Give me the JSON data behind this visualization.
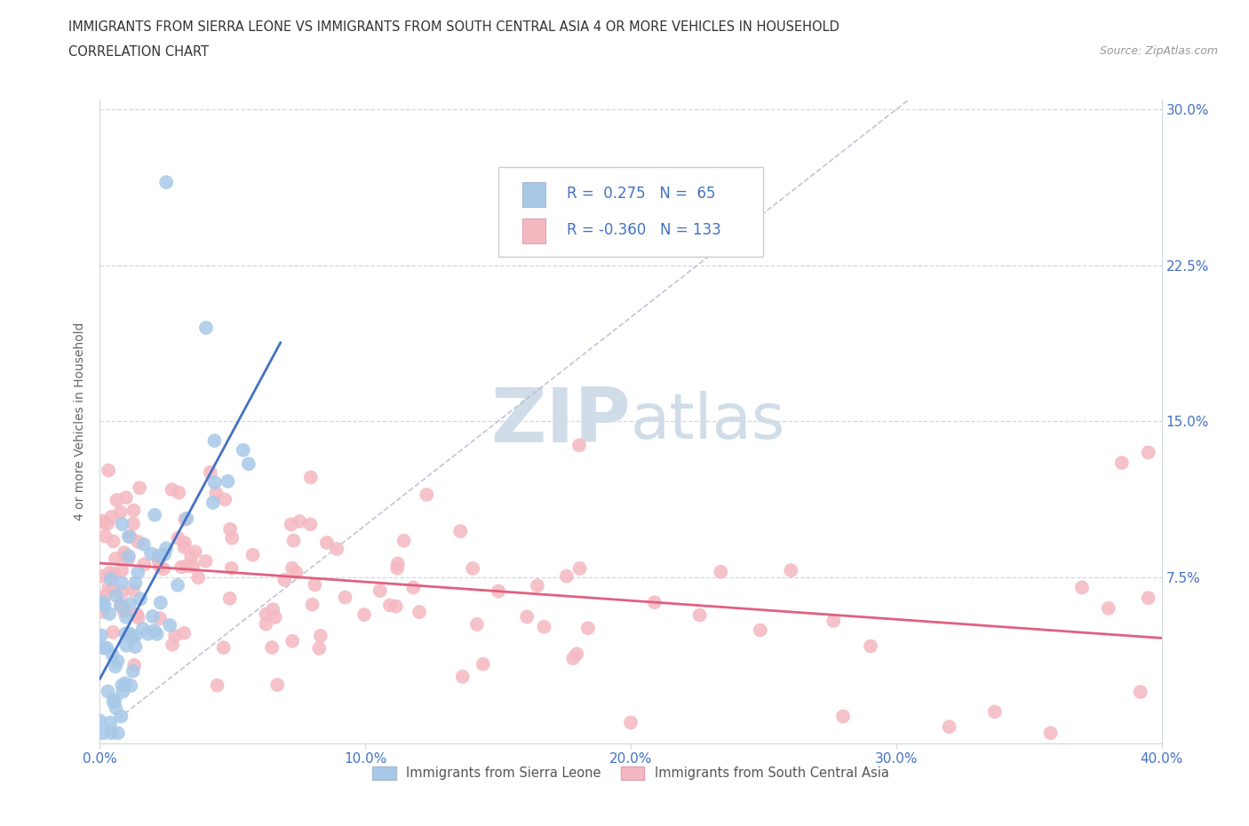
{
  "title_line1": "IMMIGRANTS FROM SIERRA LEONE VS IMMIGRANTS FROM SOUTH CENTRAL ASIA 4 OR MORE VEHICLES IN HOUSEHOLD",
  "title_line2": "CORRELATION CHART",
  "source_text": "Source: ZipAtlas.com",
  "ylabel": "4 or more Vehicles in Household",
  "xmin": 0.0,
  "xmax": 0.4,
  "ymin": -0.005,
  "ymax": 0.305,
  "xtick_labels": [
    "0.0%",
    "10.0%",
    "20.0%",
    "30.0%",
    "40.0%"
  ],
  "xtick_values": [
    0.0,
    0.1,
    0.2,
    0.3,
    0.4
  ],
  "ytick_labels": [
    "7.5%",
    "15.0%",
    "22.5%",
    "30.0%"
  ],
  "ytick_values": [
    0.075,
    0.15,
    0.225,
    0.3
  ],
  "legend_R1": "0.275",
  "legend_N1": "65",
  "legend_R2": "-0.360",
  "legend_N2": "133",
  "color_sierra": "#a8c8e8",
  "color_asia": "#f4b8c0",
  "color_line_sierra": "#4472c4",
  "color_line_asia": "#e06080",
  "watermark_color": "#d0dce8",
  "watermark_ZIP": "ZIP",
  "watermark_atlas": "atlas",
  "legend_label1": "Immigrants from Sierra Leone",
  "legend_label2": "Immigrants from South Central Asia"
}
